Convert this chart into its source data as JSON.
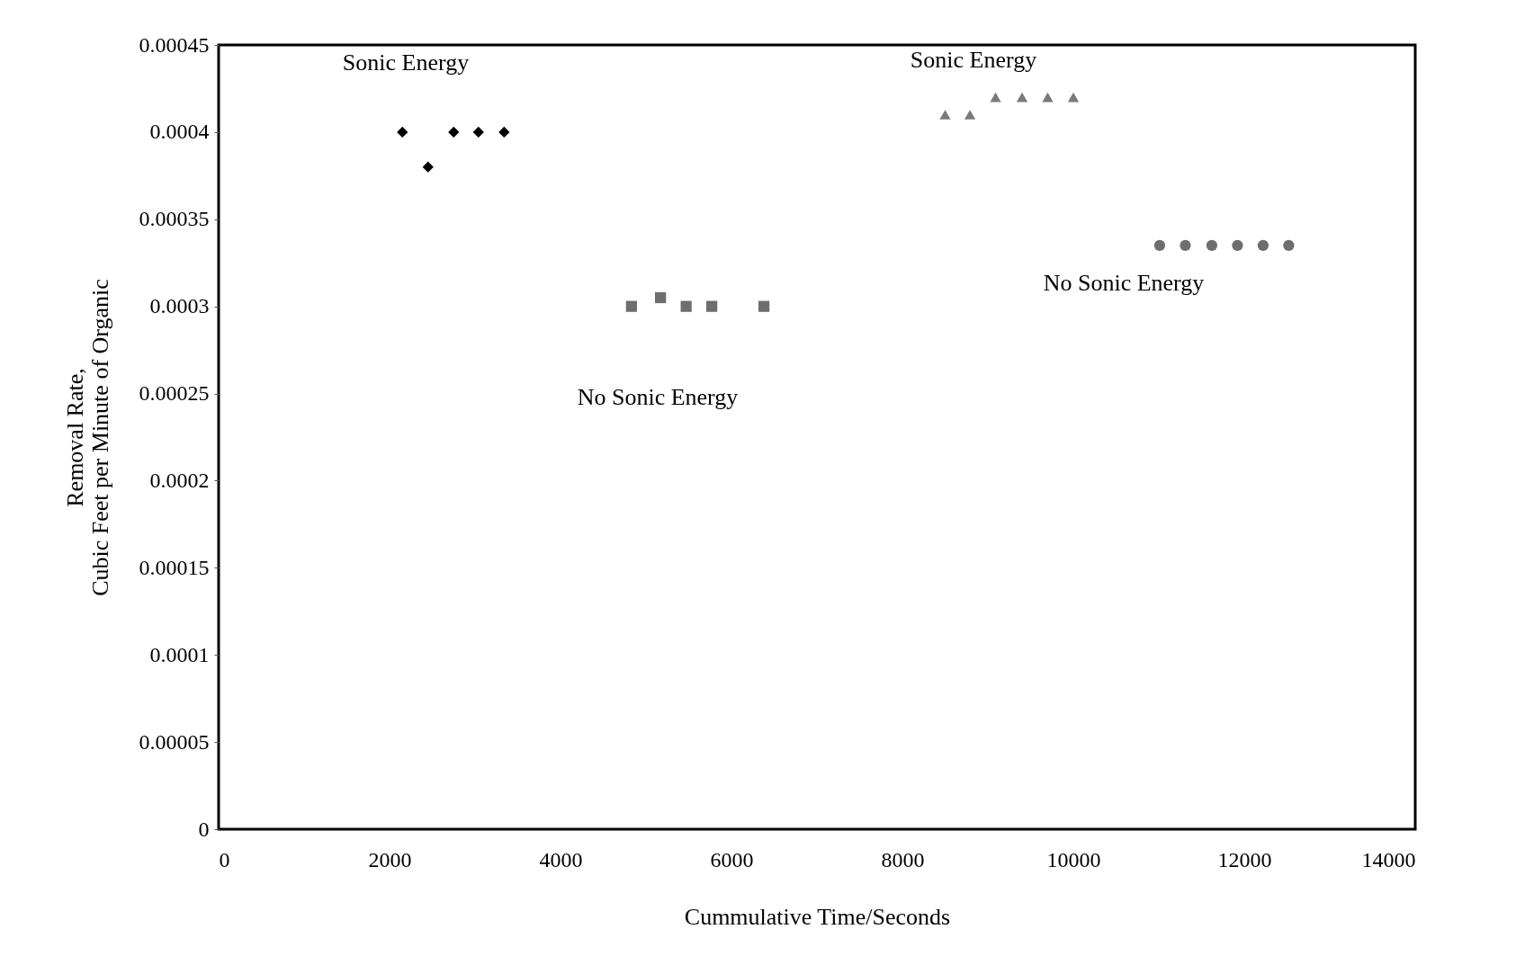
{
  "chart_data": {
    "type": "scatter",
    "xlabel": "Cummulative Time/Seconds",
    "ylabel": "Removal Rate,\nCubic Feet per Minute of Organic",
    "xlim": [
      0,
      14000
    ],
    "xticks": [
      0,
      2000,
      4000,
      6000,
      8000,
      10000,
      12000,
      14000
    ],
    "ylim": [
      0,
      0.00045
    ],
    "yticks": [
      0,
      {
        "value": 5e-05,
        "label": "0.00005"
      },
      0.0001,
      0.00015,
      0.0002,
      0.00025,
      0.0003,
      0.00035,
      0.0004,
      0.00045
    ],
    "grid": false,
    "series": [
      {
        "color": "#000000",
        "marker": "diamond",
        "x": [
          2150,
          2450,
          2750,
          3040,
          3340
        ],
        "values": [
          0.0004,
          0.00038,
          0.0004,
          0.0004,
          0.0004
        ]
      },
      {
        "color": "#6e6e6e",
        "marker": "square",
        "x": [
          4830,
          5170,
          5470,
          5770,
          6380
        ],
        "values": [
          0.0003,
          0.000305,
          0.0003,
          0.0003,
          0.0003
        ]
      },
      {
        "color": "#7a7a7a",
        "marker": "triangle",
        "x": [
          8500,
          8790,
          9090,
          9400,
          9700,
          10000
        ],
        "values": [
          0.00041,
          0.00041,
          0.00042,
          0.00042,
          0.00042,
          0.00042
        ]
      },
      {
        "color": "#6e6e6e",
        "marker": "circle",
        "x": [
          11010,
          11310,
          11620,
          11920,
          12220,
          12520
        ],
        "values": [
          0.000335,
          0.000335,
          0.000335,
          0.000335,
          0.000335,
          0.000335
        ]
      }
    ],
    "annotations": [
      "Sonic Energy",
      "Sonic Energy",
      "No Sonic Energy",
      "No Sonic Energy"
    ]
  }
}
